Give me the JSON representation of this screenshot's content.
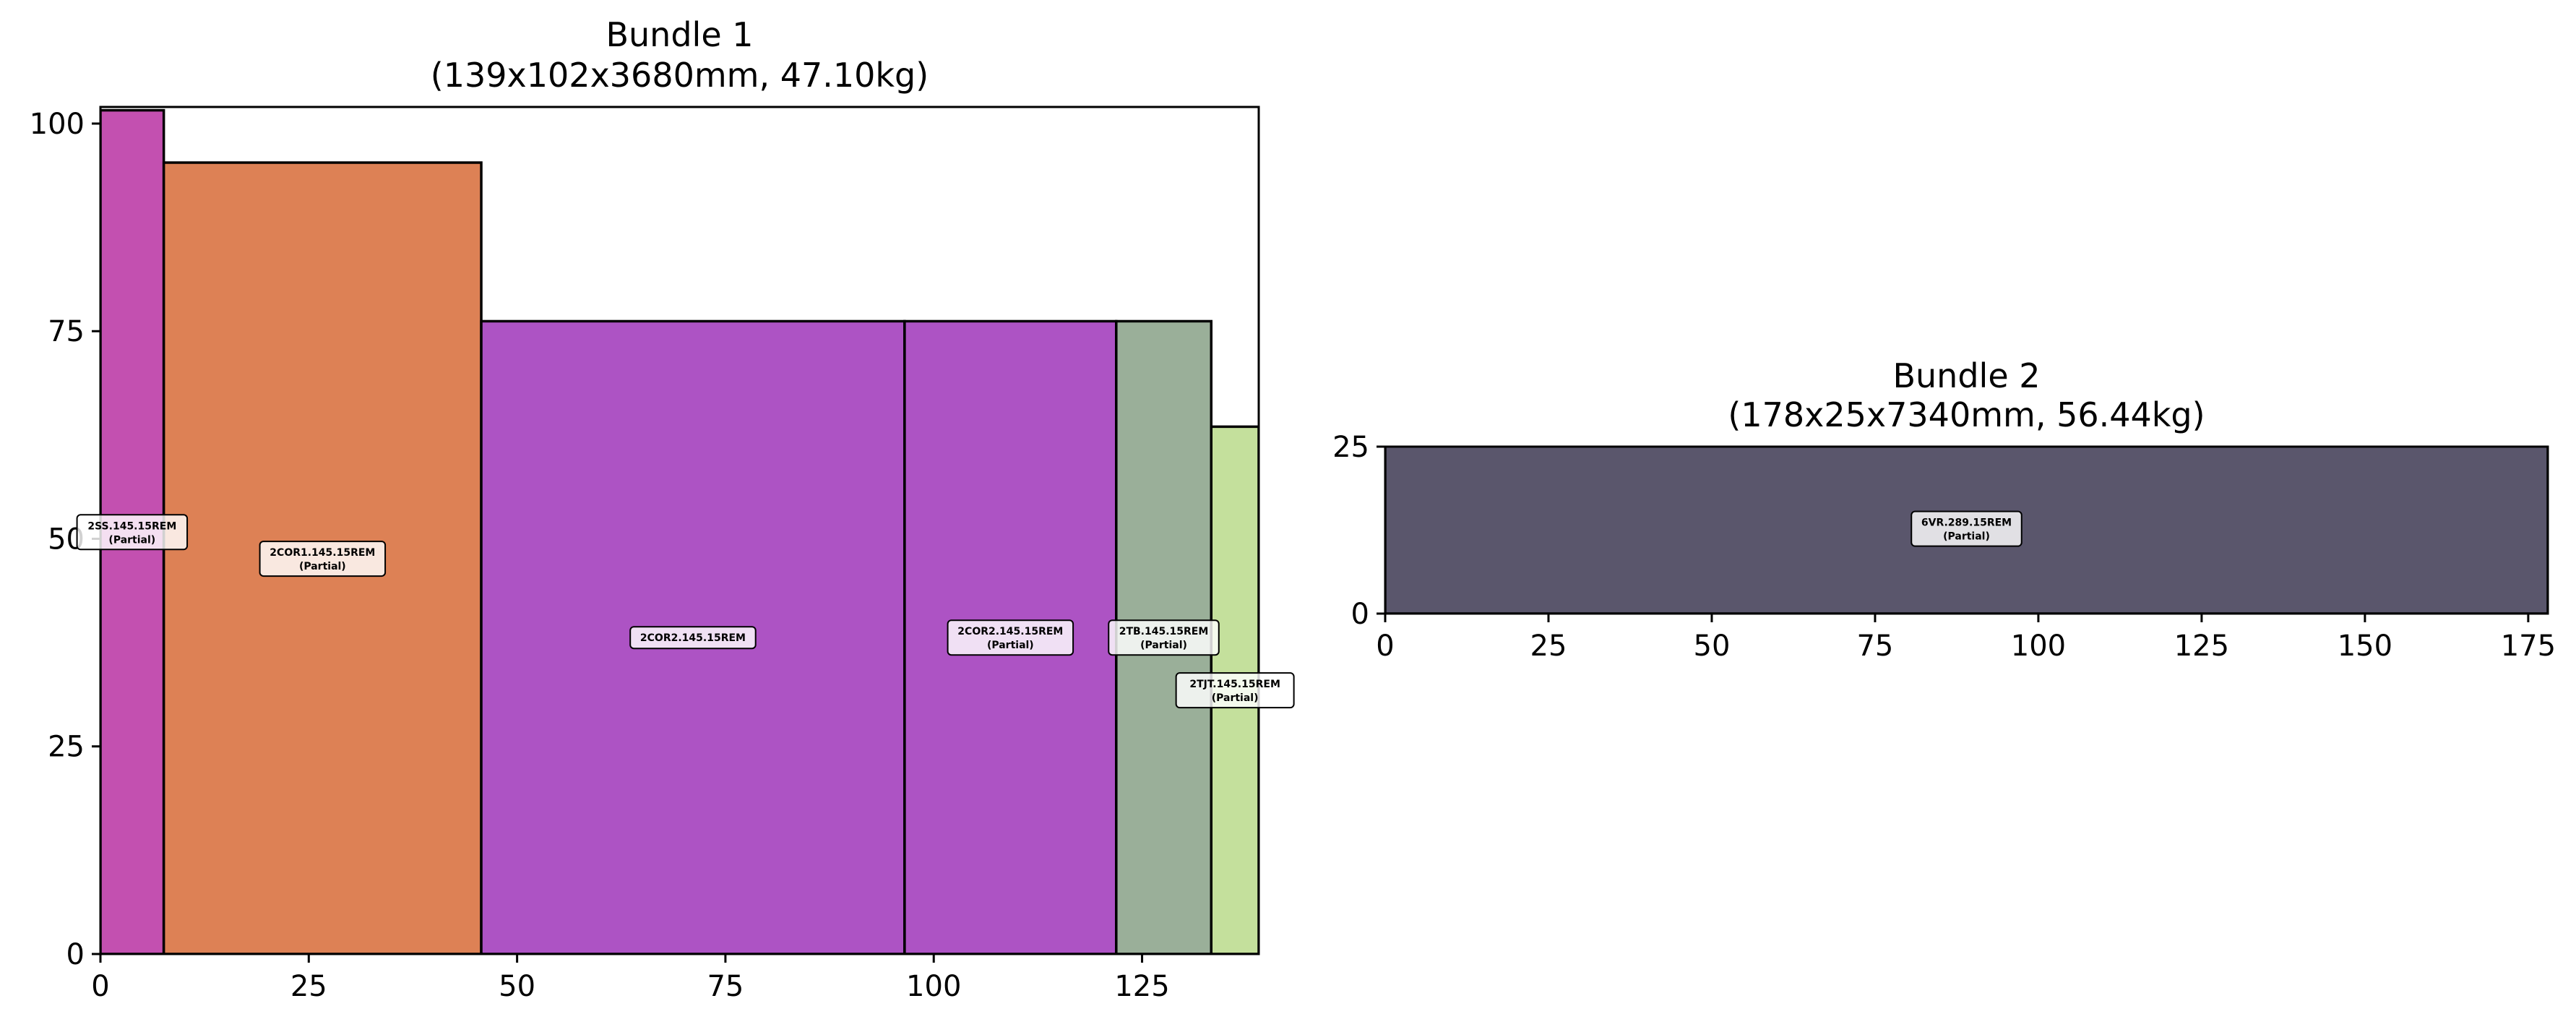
{
  "chart_data": [
    {
      "type": "packing",
      "title": "Bundle 1",
      "subtitle": "(139x102x3680mm, 47.10kg)",
      "xlim": [
        0,
        139
      ],
      "ylim": [
        0,
        102
      ],
      "xticks": [
        0,
        25,
        50,
        75,
        100,
        125
      ],
      "yticks": [
        0,
        25,
        50,
        75,
        100
      ],
      "rectangles": [
        {
          "x": 0,
          "y": 0,
          "width": 7.6,
          "height": 101.6,
          "color": "#c350b0",
          "label": "2SS.145.15REM",
          "sublabel": "(Partial)",
          "label_x": 3.8,
          "label_y": 50.8
        },
        {
          "x": 7.6,
          "y": 0,
          "width": 38.1,
          "height": 95.3,
          "color": "#dd8155",
          "label": "2COR1.145.15REM",
          "sublabel": "(Partial)",
          "label_x": 26.65,
          "label_y": 47.6
        },
        {
          "x": 45.7,
          "y": 0,
          "width": 50.8,
          "height": 76.2,
          "color": "#ad53c4",
          "label": "2COR2.145.15REM",
          "sublabel": "",
          "label_x": 71.1,
          "label_y": 38.1
        },
        {
          "x": 96.5,
          "y": 0,
          "width": 25.4,
          "height": 76.2,
          "color": "#ad53c4",
          "label": "2COR2.145.15REM",
          "sublabel": "(Partial)",
          "label_x": 109.2,
          "label_y": 38.1
        },
        {
          "x": 121.9,
          "y": 0,
          "width": 11.4,
          "height": 76.2,
          "color": "#9aaf99",
          "label": "2TB.145.15REM",
          "sublabel": "(Partial)",
          "label_x": 127.6,
          "label_y": 38.1
        },
        {
          "x": 133.3,
          "y": 0,
          "width": 5.7,
          "height": 63.5,
          "color": "#c4e09c",
          "label": "2TJT.145.15REM",
          "sublabel": "(Partial)",
          "label_x": 136.15,
          "label_y": 31.75
        }
      ]
    },
    {
      "type": "packing",
      "title": "Bundle 2",
      "subtitle": "(178x25x7340mm, 56.44kg)",
      "xlim": [
        0,
        178
      ],
      "ylim": [
        0,
        25
      ],
      "xticks": [
        0,
        25,
        50,
        75,
        100,
        125,
        150,
        175
      ],
      "yticks": [
        0,
        25
      ],
      "rectangles": [
        {
          "x": 0,
          "y": 0,
          "width": 178,
          "height": 25.4,
          "color": "#5a566c",
          "label": "6VR.289.15REM",
          "sublabel": "(Partial)",
          "label_x": 89,
          "label_y": 12.7
        }
      ]
    }
  ]
}
